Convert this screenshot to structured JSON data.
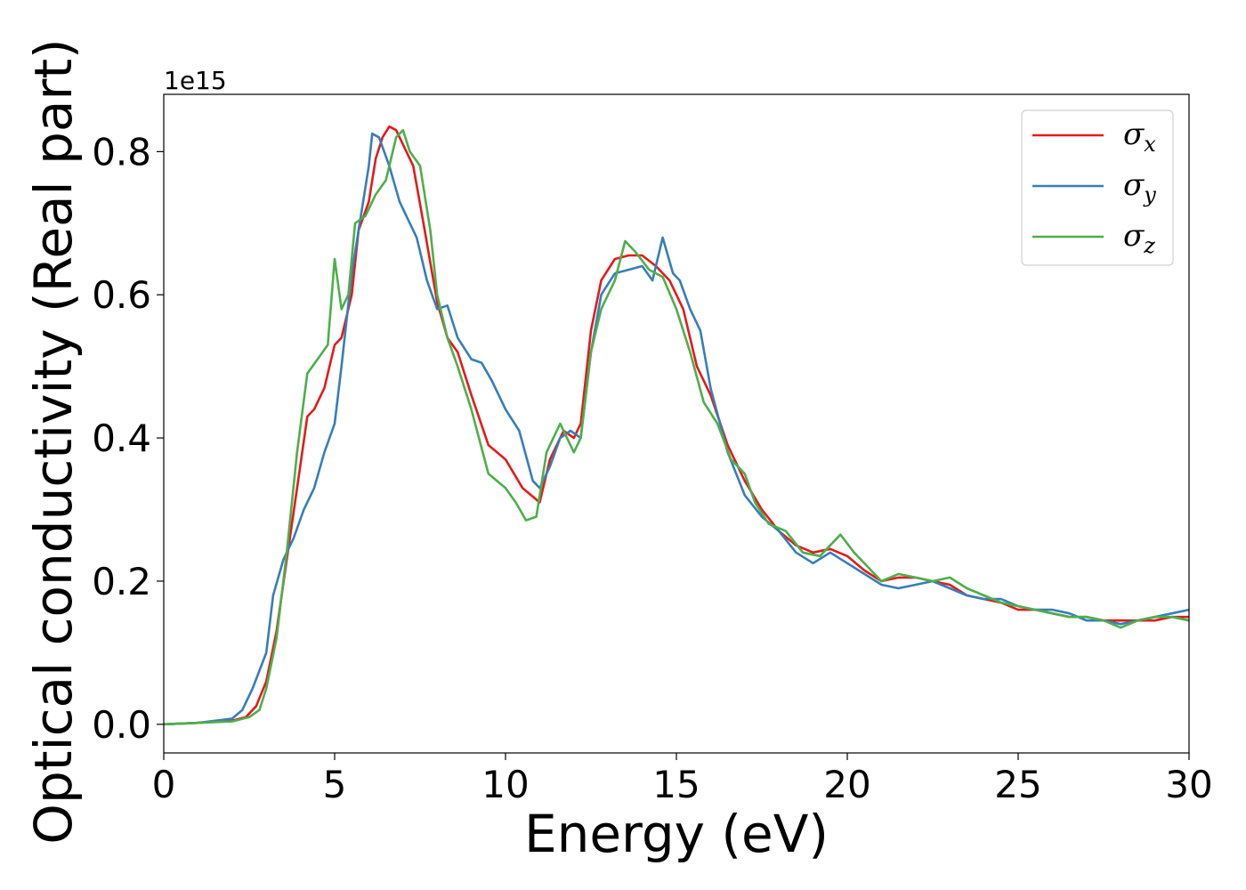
{
  "chart_data": {
    "type": "line",
    "xlabel": "Energy (eV)",
    "ylabel": "Optical conductivity (Real part)",
    "y_offset_label": "1e15",
    "xlim": [
      0,
      30
    ],
    "ylim": [
      -0.04,
      0.88
    ],
    "x_ticks": [
      0,
      5,
      10,
      15,
      20,
      25,
      30
    ],
    "x_tick_labels": [
      "0",
      "5",
      "10",
      "15",
      "20",
      "25",
      "30"
    ],
    "y_ticks": [
      0.0,
      0.2,
      0.4,
      0.6,
      0.8
    ],
    "y_tick_labels": [
      "0.0",
      "0.2",
      "0.4",
      "0.6",
      "0.8"
    ],
    "grid": false,
    "legend_position": "top-right",
    "series": [
      {
        "name": "σx",
        "symbol": "σ",
        "subscript": "x",
        "color": "#e41a1c",
        "points": [
          [
            0,
            0
          ],
          [
            1,
            0.002
          ],
          [
            2,
            0.005
          ],
          [
            2.4,
            0.01
          ],
          [
            2.7,
            0.025
          ],
          [
            3,
            0.06
          ],
          [
            3.3,
            0.13
          ],
          [
            3.6,
            0.23
          ],
          [
            3.9,
            0.33
          ],
          [
            4.2,
            0.43
          ],
          [
            4.4,
            0.44
          ],
          [
            4.7,
            0.47
          ],
          [
            5.0,
            0.53
          ],
          [
            5.2,
            0.54
          ],
          [
            5.5,
            0.6
          ],
          [
            5.7,
            0.69
          ],
          [
            6.0,
            0.73
          ],
          [
            6.2,
            0.79
          ],
          [
            6.4,
            0.82
          ],
          [
            6.6,
            0.835
          ],
          [
            6.8,
            0.83
          ],
          [
            7.0,
            0.81
          ],
          [
            7.3,
            0.78
          ],
          [
            7.6,
            0.7
          ],
          [
            8.0,
            0.59
          ],
          [
            8.3,
            0.54
          ],
          [
            8.6,
            0.52
          ],
          [
            9.0,
            0.46
          ],
          [
            9.5,
            0.39
          ],
          [
            10.0,
            0.37
          ],
          [
            10.5,
            0.33
          ],
          [
            11.0,
            0.31
          ],
          [
            11.3,
            0.37
          ],
          [
            11.7,
            0.41
          ],
          [
            12.0,
            0.4
          ],
          [
            12.2,
            0.42
          ],
          [
            12.5,
            0.55
          ],
          [
            12.8,
            0.62
          ],
          [
            13.2,
            0.65
          ],
          [
            13.6,
            0.655
          ],
          [
            14.0,
            0.655
          ],
          [
            14.4,
            0.64
          ],
          [
            14.8,
            0.62
          ],
          [
            15.2,
            0.58
          ],
          [
            15.6,
            0.5
          ],
          [
            16.0,
            0.46
          ],
          [
            16.5,
            0.39
          ],
          [
            17.0,
            0.34
          ],
          [
            17.5,
            0.3
          ],
          [
            18.0,
            0.27
          ],
          [
            18.5,
            0.25
          ],
          [
            19.0,
            0.24
          ],
          [
            19.5,
            0.245
          ],
          [
            20.0,
            0.235
          ],
          [
            20.5,
            0.215
          ],
          [
            21.0,
            0.2
          ],
          [
            21.5,
            0.205
          ],
          [
            22.0,
            0.205
          ],
          [
            22.5,
            0.2
          ],
          [
            23.0,
            0.195
          ],
          [
            23.5,
            0.18
          ],
          [
            24.0,
            0.175
          ],
          [
            24.5,
            0.17
          ],
          [
            25.0,
            0.16
          ],
          [
            25.5,
            0.16
          ],
          [
            26.0,
            0.155
          ],
          [
            26.5,
            0.15
          ],
          [
            27.0,
            0.15
          ],
          [
            27.5,
            0.145
          ],
          [
            28.0,
            0.145
          ],
          [
            28.5,
            0.145
          ],
          [
            29.0,
            0.145
          ],
          [
            29.5,
            0.15
          ],
          [
            30.0,
            0.15
          ]
        ]
      },
      {
        "name": "σy",
        "symbol": "σ",
        "subscript": "y",
        "color": "#377eb8",
        "points": [
          [
            0,
            0
          ],
          [
            1,
            0.002
          ],
          [
            2,
            0.008
          ],
          [
            2.3,
            0.02
          ],
          [
            2.6,
            0.05
          ],
          [
            3.0,
            0.1
          ],
          [
            3.2,
            0.18
          ],
          [
            3.5,
            0.23
          ],
          [
            3.8,
            0.26
          ],
          [
            4.1,
            0.3
          ],
          [
            4.4,
            0.33
          ],
          [
            4.7,
            0.38
          ],
          [
            5.0,
            0.42
          ],
          [
            5.2,
            0.5
          ],
          [
            5.5,
            0.63
          ],
          [
            5.7,
            0.69
          ],
          [
            6.0,
            0.78
          ],
          [
            6.1,
            0.825
          ],
          [
            6.3,
            0.82
          ],
          [
            6.6,
            0.78
          ],
          [
            6.9,
            0.73
          ],
          [
            7.1,
            0.71
          ],
          [
            7.4,
            0.68
          ],
          [
            7.7,
            0.62
          ],
          [
            8.0,
            0.58
          ],
          [
            8.3,
            0.585
          ],
          [
            8.6,
            0.54
          ],
          [
            9.0,
            0.51
          ],
          [
            9.3,
            0.505
          ],
          [
            9.6,
            0.48
          ],
          [
            10.0,
            0.44
          ],
          [
            10.4,
            0.41
          ],
          [
            10.8,
            0.34
          ],
          [
            11.0,
            0.33
          ],
          [
            11.3,
            0.36
          ],
          [
            11.6,
            0.4
          ],
          [
            11.9,
            0.41
          ],
          [
            12.2,
            0.4
          ],
          [
            12.5,
            0.52
          ],
          [
            12.8,
            0.6
          ],
          [
            13.2,
            0.63
          ],
          [
            13.6,
            0.635
          ],
          [
            14.0,
            0.64
          ],
          [
            14.3,
            0.62
          ],
          [
            14.6,
            0.68
          ],
          [
            14.9,
            0.63
          ],
          [
            15.1,
            0.62
          ],
          [
            15.4,
            0.58
          ],
          [
            15.7,
            0.55
          ],
          [
            16.0,
            0.47
          ],
          [
            16.5,
            0.38
          ],
          [
            17.0,
            0.32
          ],
          [
            17.5,
            0.29
          ],
          [
            18.0,
            0.27
          ],
          [
            18.5,
            0.24
          ],
          [
            19.0,
            0.225
          ],
          [
            19.5,
            0.24
          ],
          [
            20.0,
            0.225
          ],
          [
            20.5,
            0.21
          ],
          [
            21.0,
            0.195
          ],
          [
            21.5,
            0.19
          ],
          [
            22.0,
            0.195
          ],
          [
            22.5,
            0.2
          ],
          [
            23.0,
            0.19
          ],
          [
            23.5,
            0.18
          ],
          [
            24.0,
            0.175
          ],
          [
            24.5,
            0.175
          ],
          [
            25.0,
            0.165
          ],
          [
            25.5,
            0.16
          ],
          [
            26.0,
            0.16
          ],
          [
            26.5,
            0.155
          ],
          [
            27.0,
            0.145
          ],
          [
            27.5,
            0.145
          ],
          [
            28.0,
            0.14
          ],
          [
            28.5,
            0.145
          ],
          [
            29.0,
            0.15
          ],
          [
            29.5,
            0.155
          ],
          [
            30.0,
            0.16
          ]
        ]
      },
      {
        "name": "σz",
        "symbol": "σ",
        "subscript": "z",
        "color": "#4daf4a",
        "points": [
          [
            0,
            0
          ],
          [
            1,
            0.002
          ],
          [
            2,
            0.004
          ],
          [
            2.5,
            0.01
          ],
          [
            2.8,
            0.02
          ],
          [
            3.0,
            0.05
          ],
          [
            3.3,
            0.12
          ],
          [
            3.6,
            0.24
          ],
          [
            3.9,
            0.38
          ],
          [
            4.2,
            0.49
          ],
          [
            4.5,
            0.51
          ],
          [
            4.8,
            0.53
          ],
          [
            5.0,
            0.65
          ],
          [
            5.2,
            0.58
          ],
          [
            5.4,
            0.6
          ],
          [
            5.6,
            0.7
          ],
          [
            5.9,
            0.71
          ],
          [
            6.2,
            0.74
          ],
          [
            6.5,
            0.76
          ],
          [
            6.8,
            0.82
          ],
          [
            7.0,
            0.83
          ],
          [
            7.2,
            0.8
          ],
          [
            7.5,
            0.78
          ],
          [
            7.8,
            0.69
          ],
          [
            8.0,
            0.6
          ],
          [
            8.3,
            0.54
          ],
          [
            8.6,
            0.5
          ],
          [
            9.0,
            0.44
          ],
          [
            9.5,
            0.35
          ],
          [
            10.0,
            0.33
          ],
          [
            10.3,
            0.31
          ],
          [
            10.6,
            0.285
          ],
          [
            10.9,
            0.29
          ],
          [
            11.2,
            0.38
          ],
          [
            11.6,
            0.42
          ],
          [
            12.0,
            0.38
          ],
          [
            12.2,
            0.4
          ],
          [
            12.5,
            0.52
          ],
          [
            12.8,
            0.58
          ],
          [
            13.2,
            0.62
          ],
          [
            13.5,
            0.675
          ],
          [
            13.8,
            0.66
          ],
          [
            14.2,
            0.635
          ],
          [
            14.6,
            0.625
          ],
          [
            15.0,
            0.58
          ],
          [
            15.4,
            0.52
          ],
          [
            15.8,
            0.45
          ],
          [
            16.2,
            0.42
          ],
          [
            16.6,
            0.37
          ],
          [
            17.0,
            0.35
          ],
          [
            17.3,
            0.31
          ],
          [
            17.7,
            0.28
          ],
          [
            18.2,
            0.27
          ],
          [
            18.7,
            0.24
          ],
          [
            19.2,
            0.235
          ],
          [
            19.8,
            0.265
          ],
          [
            20.2,
            0.24
          ],
          [
            20.6,
            0.22
          ],
          [
            21.0,
            0.2
          ],
          [
            21.5,
            0.21
          ],
          [
            22.0,
            0.205
          ],
          [
            22.5,
            0.2
          ],
          [
            23.0,
            0.205
          ],
          [
            23.5,
            0.19
          ],
          [
            24.0,
            0.18
          ],
          [
            24.5,
            0.17
          ],
          [
            25.0,
            0.165
          ],
          [
            25.5,
            0.16
          ],
          [
            26.0,
            0.155
          ],
          [
            26.5,
            0.15
          ],
          [
            27.0,
            0.15
          ],
          [
            27.5,
            0.145
          ],
          [
            28.0,
            0.135
          ],
          [
            28.5,
            0.145
          ],
          [
            29.0,
            0.15
          ],
          [
            29.5,
            0.15
          ],
          [
            30.0,
            0.145
          ]
        ]
      }
    ]
  }
}
